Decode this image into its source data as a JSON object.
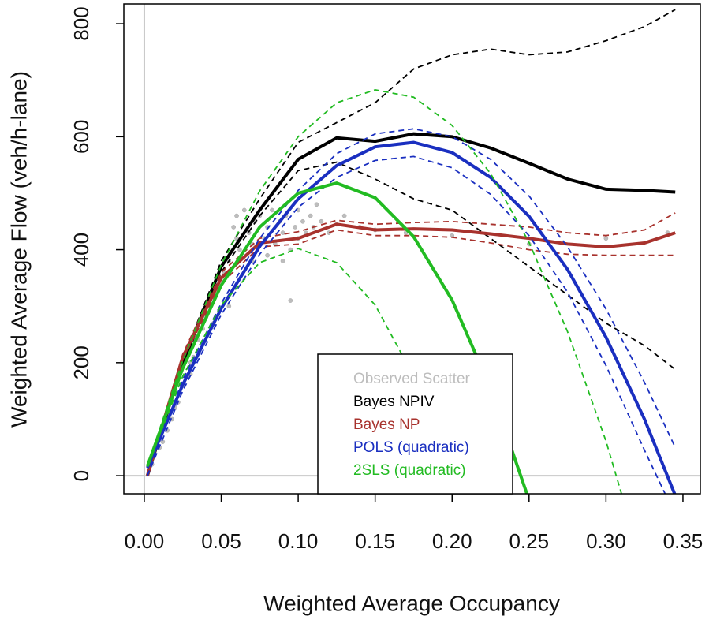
{
  "chart_data": {
    "type": "line",
    "xlabel": "Weighted Average Occupancy",
    "ylabel": "Weighted Average Flow (veh/h-lane)",
    "xlim": [
      -0.0133,
      0.3613
    ],
    "ylim": [
      -32,
      835
    ],
    "xticks": [
      {
        "value": 0,
        "label": "0.00"
      },
      0.05,
      {
        "value": 0.1,
        "label": "0.10"
      },
      0.15,
      {
        "value": 0.2,
        "label": "0.20"
      },
      0.25,
      {
        "value": 0.3,
        "label": "0.30"
      },
      0.35
    ],
    "yticks": [
      0,
      200,
      400,
      600,
      800
    ],
    "reference_lines": {
      "x": 0,
      "y": 0,
      "color": "#c8c8c8"
    },
    "series": [
      {
        "name": "Observed Scatter",
        "type": "scatter",
        "color": "#bdbdbd",
        "x": [
          0.005,
          0.01,
          0.012,
          0.015,
          0.018,
          0.02,
          0.022,
          0.025,
          0.028,
          0.03,
          0.032,
          0.035,
          0.038,
          0.04,
          0.042,
          0.045,
          0.048,
          0.05,
          0.052,
          0.055,
          0.058,
          0.06,
          0.06,
          0.062,
          0.065,
          0.068,
          0.07,
          0.07,
          0.072,
          0.075,
          0.078,
          0.08,
          0.08,
          0.083,
          0.085,
          0.088,
          0.09,
          0.09,
          0.092,
          0.095,
          0.098,
          0.1,
          0.1,
          0.103,
          0.105,
          0.108,
          0.11,
          0.112,
          0.115,
          0.12,
          0.125,
          0.13,
          0.14,
          0.15,
          0.17,
          0.2,
          0.25,
          0.3,
          0.34,
          0.055,
          0.095,
          0.045,
          0.03
        ],
        "values": [
          20,
          50,
          60,
          80,
          100,
          120,
          130,
          160,
          175,
          200,
          210,
          240,
          260,
          280,
          300,
          320,
          330,
          350,
          360,
          380,
          440,
          460,
          420,
          400,
          470,
          430,
          410,
          380,
          450,
          460,
          420,
          390,
          440,
          470,
          410,
          450,
          380,
          430,
          460,
          400,
          440,
          420,
          470,
          450,
          430,
          460,
          440,
          480,
          450,
          430,
          445,
          460,
          440,
          435,
          430,
          425,
          410,
          420,
          430,
          300,
          310,
          270,
          180
        ]
      },
      {
        "name": "Bayes NPIV",
        "color": "#000000",
        "x": [
          0.002,
          0.025,
          0.05,
          0.075,
          0.1,
          0.125,
          0.15,
          0.175,
          0.2,
          0.225,
          0.25,
          0.275,
          0.3,
          0.325,
          0.345
        ],
        "values": [
          0,
          200,
          370,
          470,
          560,
          598,
          592,
          605,
          600,
          580,
          553,
          525,
          507,
          505,
          502
        ],
        "upper": [
          0,
          205,
          380,
          490,
          590,
          625,
          660,
          720,
          745,
          755,
          745,
          750,
          770,
          795,
          825
        ],
        "lower": [
          0,
          195,
          360,
          460,
          540,
          555,
          525,
          490,
          470,
          420,
          370,
          320,
          270,
          230,
          188
        ]
      },
      {
        "name": "Bayes NP",
        "color": "#a8322d",
        "x": [
          0.002,
          0.025,
          0.05,
          0.075,
          0.1,
          0.125,
          0.15,
          0.175,
          0.2,
          0.225,
          0.25,
          0.275,
          0.3,
          0.325,
          0.345
        ],
        "values": [
          0,
          210,
          350,
          412,
          420,
          445,
          435,
          437,
          435,
          428,
          420,
          410,
          405,
          412,
          430
        ],
        "upper": [
          0,
          215,
          360,
          420,
          432,
          452,
          445,
          448,
          450,
          445,
          440,
          430,
          425,
          435,
          465
        ],
        "lower": [
          0,
          205,
          340,
          405,
          410,
          435,
          425,
          425,
          422,
          412,
          400,
          392,
          390,
          390,
          390
        ]
      },
      {
        "name": "POLS (quadratic)",
        "color": "#1a2fc0",
        "x": [
          0.002,
          0.025,
          0.05,
          0.075,
          0.1,
          0.125,
          0.15,
          0.175,
          0.2,
          0.225,
          0.25,
          0.275,
          0.3,
          0.325,
          0.345
        ],
        "values": [
          14,
          161,
          296,
          406,
          490,
          549,
          582,
          590,
          572,
          528,
          459,
          365,
          245,
          100,
          -35
        ],
        "upper": [
          0,
          170,
          305,
          420,
          505,
          570,
          605,
          614,
          600,
          560,
          495,
          405,
          295,
          165,
          50
        ],
        "lower": [
          0,
          150,
          285,
          392,
          475,
          528,
          558,
          565,
          545,
          498,
          425,
          325,
          195,
          45,
          -70
        ]
      },
      {
        "name": "2SLS (quadratic)",
        "color": "#22bb22",
        "x": [
          0.002,
          0.025,
          0.05,
          0.075,
          0.1,
          0.125,
          0.15,
          0.175,
          0.2,
          0.225,
          0.25,
          0.275,
          0.3,
          0.325,
          0.345
        ],
        "values": [
          17,
          190,
          337,
          440,
          500,
          518,
          492,
          423,
          311,
          155,
          -43,
          null,
          null,
          null,
          null
        ],
        "upper": [
          18,
          204,
          373,
          504,
          600,
          660,
          683,
          670,
          620,
          535,
          413,
          255,
          61,
          -170,
          null
        ],
        "lower": [
          16,
          176,
          302,
          377,
          402,
          377,
          302,
          176,
          0,
          -226,
          null,
          null,
          null,
          null,
          null
        ]
      }
    ]
  }
}
